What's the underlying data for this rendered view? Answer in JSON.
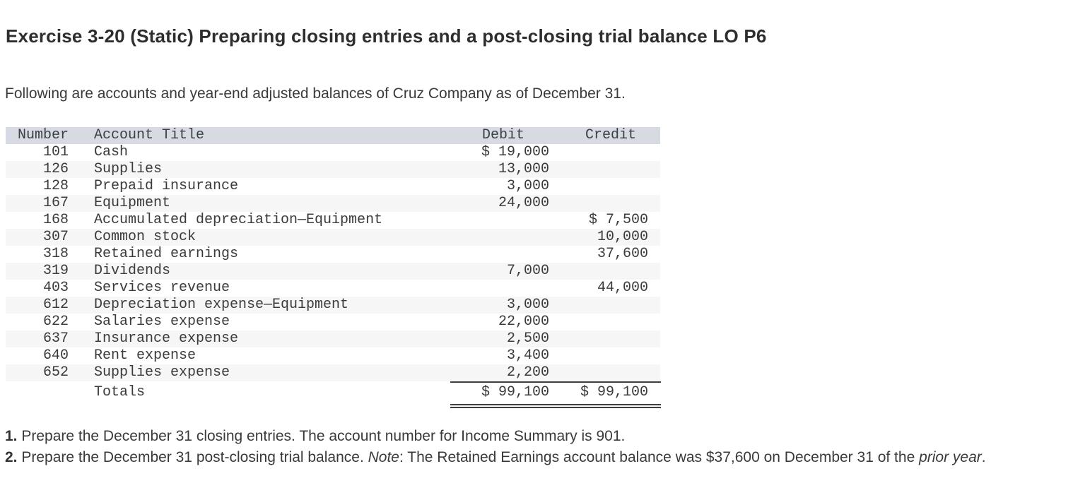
{
  "header": {
    "title": "Exercise 3-20 (Static) Preparing closing entries and a post-closing trial balance LO P6"
  },
  "intro": {
    "text": "Following are accounts and year-end adjusted balances of Cruz Company as of December 31."
  },
  "table": {
    "columns": {
      "number": "Number",
      "title": "Account Title",
      "debit": "Debit",
      "credit": "Credit"
    },
    "rows": [
      {
        "number": "101",
        "title": "Cash",
        "debit": "$ 19,000",
        "credit": ""
      },
      {
        "number": "126",
        "title": "Supplies",
        "debit": "13,000",
        "credit": ""
      },
      {
        "number": "128",
        "title": "Prepaid insurance",
        "debit": "3,000",
        "credit": ""
      },
      {
        "number": "167",
        "title": "Equipment",
        "debit": "24,000",
        "credit": ""
      },
      {
        "number": "168",
        "title": "Accumulated depreciation—Equipment",
        "debit": "",
        "credit": "$ 7,500"
      },
      {
        "number": "307",
        "title": "Common stock",
        "debit": "",
        "credit": "10,000"
      },
      {
        "number": "318",
        "title": "Retained earnings",
        "debit": "",
        "credit": "37,600"
      },
      {
        "number": "319",
        "title": "Dividends",
        "debit": "7,000",
        "credit": ""
      },
      {
        "number": "403",
        "title": "Services revenue",
        "debit": "",
        "credit": "44,000"
      },
      {
        "number": "612",
        "title": "Depreciation expense—Equipment",
        "debit": "3,000",
        "credit": ""
      },
      {
        "number": "622",
        "title": "Salaries expense",
        "debit": "22,000",
        "credit": ""
      },
      {
        "number": "637",
        "title": "Insurance expense",
        "debit": "2,500",
        "credit": ""
      },
      {
        "number": "640",
        "title": "Rent expense",
        "debit": "3,400",
        "credit": ""
      },
      {
        "number": "652",
        "title": "Supplies expense",
        "debit": "2,200",
        "credit": ""
      }
    ],
    "totals": {
      "label": "Totals",
      "debit": "$ 99,100",
      "credit": "$ 99,100"
    },
    "colors": {
      "header_bg": "#d7dae3",
      "stripe_bg": "#f6f6f7",
      "text": "#3b3b3b",
      "rule": "#3f3f3f"
    }
  },
  "instructions": {
    "item1": {
      "number": "1.",
      "text": " Prepare the December 31 closing entries. The account number for Income Summary is 901."
    },
    "item2": {
      "number": "2.",
      "text_a": " Prepare the December 31 post-closing trial balance. ",
      "note_label": "Note",
      "text_b": ": The Retained Earnings account balance was $37,600 on December 31 of the ",
      "italic_phrase": "prior year",
      "text_c": "."
    }
  }
}
